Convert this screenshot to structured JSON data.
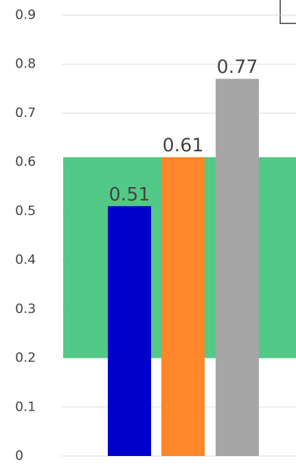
{
  "chart_data": {
    "type": "bar",
    "categories": [
      null,
      null,
      null
    ],
    "series": [
      {
        "name": null,
        "color": "#0000cc",
        "values": [
          0.51,
          null,
          null
        ]
      },
      {
        "name": null,
        "color": "#ff8629",
        "values": [
          null,
          0.61,
          null
        ]
      },
      {
        "name": null,
        "color": "#a6a6a6",
        "values": [
          null,
          null,
          0.77
        ]
      }
    ],
    "band": {
      "from": 0.2,
      "to": 0.61,
      "color": "#52c987"
    },
    "ylim": [
      0,
      0.9
    ],
    "yticks": [
      0,
      0.1,
      0.2,
      0.3,
      0.4,
      0.5,
      0.6,
      0.7,
      0.8,
      0.9
    ],
    "grid": true
  }
}
